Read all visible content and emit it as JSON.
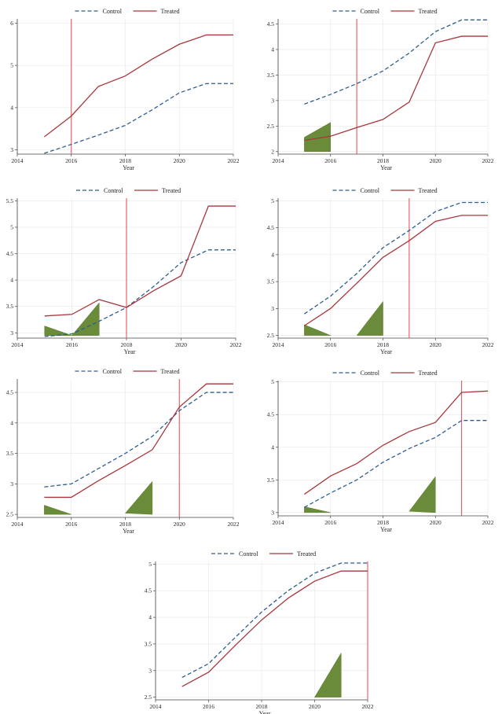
{
  "figure": {
    "legend": {
      "control": "Control",
      "treated": "Treated"
    },
    "colors": {
      "control": "#2e5e8e",
      "treated": "#a8373d",
      "event_line": "#e8474b",
      "shade": "#6a8c3a",
      "grid": "#e6e6e6",
      "axis": "#444444"
    }
  },
  "chart_data": [
    {
      "type": "line",
      "xlabel": "Year",
      "x": [
        2015,
        2016,
        2017,
        2018,
        2019,
        2020,
        2021,
        2022
      ],
      "xlim": [
        2014,
        2022
      ],
      "xticks": [
        "2014",
        "2016",
        "2018",
        "2020",
        "2022"
      ],
      "ylim": [
        2.9,
        6.1
      ],
      "yticks": [
        "3",
        "4",
        "5",
        "6"
      ],
      "event_year": 2016,
      "series": [
        {
          "name": "Control",
          "values": [
            2.92,
            3.13,
            3.35,
            3.58,
            3.95,
            4.35,
            4.57,
            4.57
          ]
        },
        {
          "name": "Treated",
          "values": [
            3.31,
            3.8,
            4.5,
            4.75,
            5.15,
            5.5,
            5.72,
            5.72
          ]
        }
      ],
      "shaded": []
    },
    {
      "type": "line",
      "xlabel": "Year",
      "x": [
        2015,
        2016,
        2017,
        2018,
        2019,
        2020,
        2021,
        2022
      ],
      "xlim": [
        2014,
        2022
      ],
      "xticks": [
        "2014",
        "2016",
        "2018",
        "2020",
        "2022"
      ],
      "ylim": [
        1.95,
        4.6
      ],
      "yticks": [
        "2",
        "2.5",
        "3",
        "3.5",
        "4",
        "4.5"
      ],
      "event_year": 2017,
      "series": [
        {
          "name": "Control",
          "values": [
            2.93,
            3.12,
            3.33,
            3.58,
            3.93,
            4.35,
            4.58,
            4.58
          ]
        },
        {
          "name": "Treated",
          "values": [
            2.22,
            2.3,
            2.47,
            2.63,
            2.97,
            4.13,
            4.26,
            4.26
          ]
        }
      ],
      "shaded": [
        {
          "x": [
            2015,
            2015,
            2016,
            2016
          ],
          "y": [
            2.0,
            2.28,
            2.57,
            2.0
          ]
        }
      ]
    },
    {
      "type": "line",
      "xlabel": "Year",
      "x": [
        2015,
        2016,
        2017,
        2018,
        2019,
        2020,
        2021,
        2022
      ],
      "xlim": [
        2014,
        2022
      ],
      "xticks": [
        "2014",
        "2016",
        "2018",
        "2020",
        "2022"
      ],
      "ylim": [
        2.9,
        5.55
      ],
      "yticks": [
        "3",
        "3.5",
        "4",
        "4.5",
        "5",
        "5.5"
      ],
      "event_year": 2018,
      "series": [
        {
          "name": "Control",
          "values": [
            2.93,
            2.98,
            3.22,
            3.48,
            3.88,
            4.33,
            4.57,
            4.57
          ]
        },
        {
          "name": "Treated",
          "values": [
            3.32,
            3.35,
            3.63,
            3.48,
            3.8,
            4.08,
            5.4,
            5.4
          ]
        }
      ],
      "shaded": [
        {
          "x": [
            2015,
            2015,
            2016,
            2016
          ],
          "y": [
            2.95,
            3.13,
            2.95,
            2.95
          ]
        },
        {
          "x": [
            2016,
            2017,
            2017
          ],
          "y": [
            2.95,
            3.57,
            2.95
          ]
        }
      ]
    },
    {
      "type": "line",
      "xlabel": "Year",
      "x": [
        2015,
        2016,
        2017,
        2018,
        2019,
        2020,
        2021,
        2022
      ],
      "xlim": [
        2014,
        2022
      ],
      "xticks": [
        "2014",
        "2016",
        "2018",
        "2020",
        "2022"
      ],
      "ylim": [
        2.45,
        5.05
      ],
      "yticks": [
        "2.5",
        "3",
        "3.5",
        "4",
        "4.5",
        "5"
      ],
      "event_year": 2019,
      "series": [
        {
          "name": "Control",
          "values": [
            2.9,
            3.23,
            3.65,
            4.13,
            4.45,
            4.8,
            4.97,
            4.97
          ]
        },
        {
          "name": "Treated",
          "values": [
            2.68,
            3.0,
            3.47,
            3.95,
            4.26,
            4.62,
            4.73,
            4.73
          ]
        }
      ],
      "shaded": [
        {
          "x": [
            2015,
            2015,
            2016
          ],
          "y": [
            2.5,
            2.7,
            2.5
          ]
        },
        {
          "x": [
            2017,
            2018,
            2018
          ],
          "y": [
            2.5,
            3.13,
            2.5
          ]
        }
      ]
    },
    {
      "type": "line",
      "xlabel": "Year",
      "x": [
        2015,
        2016,
        2017,
        2018,
        2019,
        2020,
        2021,
        2022
      ],
      "xlim": [
        2014,
        2022
      ],
      "xticks": [
        "2014",
        "2016",
        "2018",
        "2020",
        "2022"
      ],
      "ylim": [
        2.45,
        4.72
      ],
      "yticks": [
        "2.5",
        "3",
        "3.5",
        "4",
        "4.5"
      ],
      "event_year": 2020,
      "series": [
        {
          "name": "Control",
          "values": [
            2.95,
            3.0,
            3.25,
            3.5,
            3.78,
            4.2,
            4.5,
            4.5
          ]
        },
        {
          "name": "Treated",
          "values": [
            2.78,
            2.78,
            3.05,
            3.3,
            3.56,
            4.26,
            4.64,
            4.64
          ]
        }
      ],
      "shaded": [
        {
          "x": [
            2015,
            2015,
            2016
          ],
          "y": [
            2.5,
            2.65,
            2.5
          ]
        },
        {
          "x": [
            2018,
            2019,
            2019
          ],
          "y": [
            2.52,
            3.04,
            2.5
          ]
        }
      ]
    },
    {
      "type": "line",
      "xlabel": "Year",
      "x": [
        2015,
        2016,
        2017,
        2018,
        2019,
        2020,
        2021,
        2022
      ],
      "xlim": [
        2014,
        2022
      ],
      "xticks": [
        "2014",
        "2016",
        "2018",
        "2020",
        "2022"
      ],
      "ylim": [
        2.95,
        5.02
      ],
      "yticks": [
        "3",
        "3.5",
        "4",
        "4.5",
        "5"
      ],
      "event_year": 2021,
      "series": [
        {
          "name": "Control",
          "values": [
            3.08,
            3.3,
            3.5,
            3.77,
            3.98,
            4.15,
            4.41,
            4.41
          ]
        },
        {
          "name": "Treated",
          "values": [
            3.28,
            3.56,
            3.75,
            4.03,
            4.24,
            4.38,
            4.84,
            4.86
          ]
        }
      ],
      "shaded": [
        {
          "x": [
            2015,
            2015,
            2016
          ],
          "y": [
            3.0,
            3.09,
            3.0
          ]
        },
        {
          "x": [
            2019,
            2020,
            2020
          ],
          "y": [
            3.02,
            3.55,
            3.0
          ]
        }
      ]
    },
    {
      "type": "line",
      "xlabel": "Year",
      "x": [
        2015,
        2016,
        2017,
        2018,
        2019,
        2020,
        2021,
        2022
      ],
      "xlim": [
        2014,
        2022
      ],
      "xticks": [
        "2014",
        "2016",
        "2018",
        "2020",
        "2022"
      ],
      "ylim": [
        2.45,
        5.05
      ],
      "yticks": [
        "2.5",
        "3",
        "3.5",
        "4",
        "4.5",
        "5"
      ],
      "event_year": 2022,
      "series": [
        {
          "name": "Control",
          "values": [
            2.87,
            3.13,
            3.62,
            4.1,
            4.5,
            4.83,
            5.02,
            5.02
          ]
        },
        {
          "name": "Treated",
          "values": [
            2.7,
            2.97,
            3.47,
            3.95,
            4.36,
            4.68,
            4.87,
            4.87
          ]
        }
      ],
      "shaded": [
        {
          "x": [
            2020,
            2021,
            2021
          ],
          "y": [
            2.5,
            3.33,
            2.5
          ]
        }
      ]
    }
  ]
}
